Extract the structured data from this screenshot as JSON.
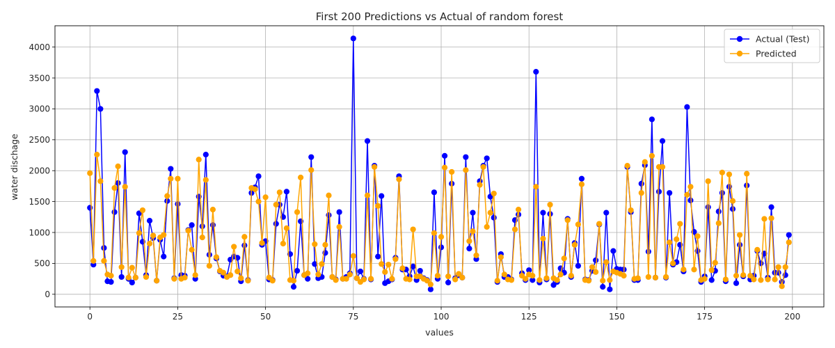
{
  "chart_data": {
    "type": "line",
    "title": "First 200 Predictions vs Actual of random forest",
    "xlabel": "values",
    "ylabel": "water dischage",
    "xlim": [
      -9.95,
      208.95
    ],
    "ylim": [
      -205,
      4345
    ],
    "xticks": [
      0,
      25,
      50,
      75,
      100,
      125,
      150,
      175,
      200
    ],
    "yticks": [
      0,
      500,
      1000,
      1500,
      2000,
      2500,
      3000,
      3500,
      4000
    ],
    "grid": true,
    "legend_position": "top-right",
    "series": [
      {
        "name": "Actual (Test)",
        "color": "#0000ff",
        "marker": "circle",
        "values": [
          1400,
          480,
          3290,
          3000,
          750,
          210,
          200,
          1330,
          1800,
          280,
          2300,
          250,
          190,
          270,
          1310,
          850,
          310,
          1190,
          910,
          220,
          880,
          610,
          1510,
          2030,
          260,
          1460,
          310,
          300,
          1040,
          1120,
          250,
          1580,
          1100,
          2260,
          640,
          1120,
          580,
          370,
          300,
          290,
          560,
          610,
          590,
          210,
          790,
          230,
          1640,
          1730,
          1910,
          800,
          860,
          240,
          230,
          1140,
          1450,
          1250,
          1660,
          650,
          120,
          380,
          1180,
          310,
          250,
          2220,
          490,
          260,
          280,
          670,
          1280,
          280,
          240,
          1330,
          250,
          280,
          340,
          4140,
          260,
          370,
          250,
          2480,
          240,
          2080,
          610,
          1590,
          180,
          210,
          240,
          590,
          1910,
          400,
          400,
          290,
          450,
          230,
          380,
          260,
          230,
          80,
          1650,
          250,
          760,
          2240,
          190,
          1790,
          260,
          310,
          270,
          2220,
          740,
          1320,
          570,
          1830,
          2080,
          2200,
          1580,
          1240,
          200,
          650,
          280,
          280,
          240,
          1200,
          1290,
          340,
          230,
          390,
          230,
          3600,
          190,
          1320,
          240,
          1300,
          150,
          200,
          420,
          350,
          1220,
          280,
          830,
          460,
          1870,
          240,
          230,
          380,
          550,
          1130,
          120,
          1320,
          80,
          700,
          410,
          400,
          400,
          2060,
          1330,
          230,
          230,
          1790,
          2090,
          690,
          2830,
          270,
          1660,
          2480,
          270,
          1640,
          480,
          520,
          800,
          370,
          3030,
          1520,
          1010,
          700,
          200,
          290,
          1410,
          230,
          380,
          1340,
          1640,
          210,
          1740,
          1380,
          180,
          800,
          290,
          1760,
          240,
          300,
          700,
          500,
          660,
          270,
          1410,
          350,
          350,
          200,
          310,
          960
        ]
      },
      {
        "name": "Predicted",
        "color": "#ffa500",
        "marker": "circle",
        "values": [
          1960,
          540,
          2260,
          1830,
          540,
          320,
          300,
          1720,
          2070,
          440,
          1740,
          270,
          430,
          270,
          990,
          1360,
          280,
          820,
          950,
          220,
          920,
          960,
          1590,
          1870,
          250,
          1870,
          250,
          270,
          1030,
          720,
          310,
          2180,
          920,
          1850,
          460,
          1370,
          600,
          380,
          350,
          280,
          310,
          770,
          370,
          260,
          930,
          220,
          1720,
          1700,
          1500,
          830,
          1570,
          270,
          220,
          1450,
          1650,
          820,
          1070,
          230,
          220,
          1330,
          1890,
          310,
          340,
          2010,
          810,
          320,
          490,
          800,
          1600,
          280,
          230,
          1090,
          250,
          250,
          320,
          620,
          260,
          200,
          240,
          1600,
          250,
          2060,
          1430,
          490,
          360,
          480,
          250,
          570,
          1860,
          420,
          250,
          240,
          1050,
          290,
          290,
          250,
          220,
          160,
          990,
          300,
          930,
          2050,
          290,
          1980,
          240,
          330,
          270,
          2010,
          860,
          1020,
          630,
          1770,
          2060,
          1090,
          1320,
          1630,
          220,
          600,
          320,
          240,
          230,
          1050,
          1370,
          300,
          250,
          320,
          300,
          1740,
          230,
          900,
          260,
          1450,
          260,
          230,
          320,
          580,
          1200,
          300,
          800,
          1130,
          1780,
          230,
          220,
          440,
          360,
          1140,
          220,
          520,
          230,
          370,
          350,
          330,
          300,
          2080,
          1360,
          250,
          260,
          1640,
          2140,
          280,
          2240,
          270,
          2060,
          2060,
          280,
          840,
          500,
          890,
          1140,
          400,
          1610,
          1740,
          400,
          940,
          230,
          250,
          1830,
          390,
          510,
          1150,
          1970,
          240,
          1940,
          1510,
          300,
          960,
          310,
          1950,
          300,
          240,
          720,
          230,
          1220,
          240,
          1230,
          240,
          440,
          130,
          440,
          840
        ]
      }
    ]
  }
}
